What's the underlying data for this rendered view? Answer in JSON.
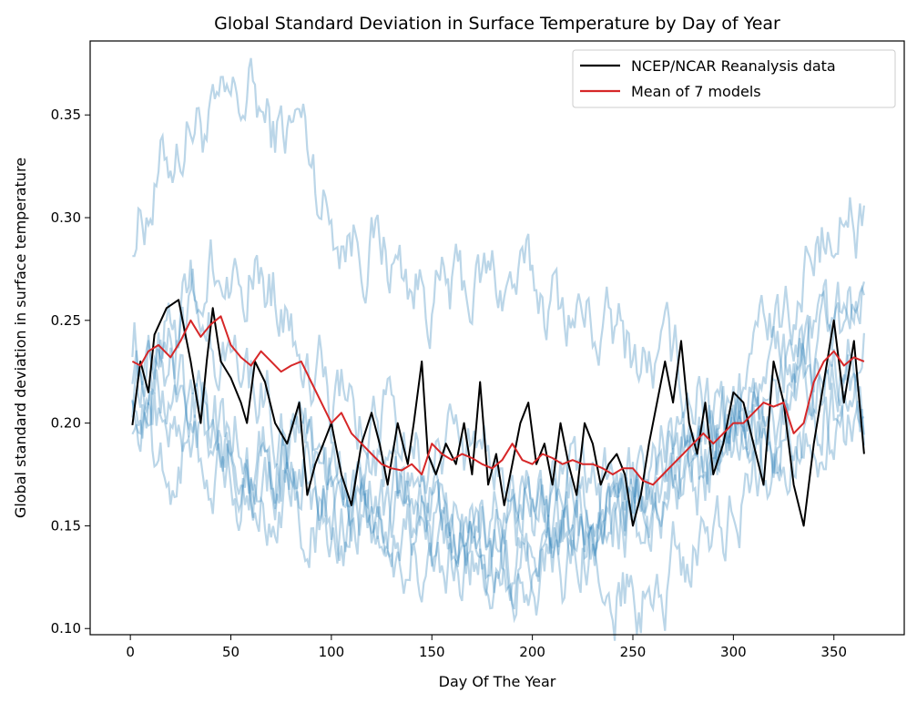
{
  "chart_data": {
    "type": "line",
    "title": "Global Standard Deviation in Surface Temperature by Day of Year",
    "xlabel": "Day Of The Year",
    "ylabel": "Global standard deviation in surface temperature",
    "xlim": [
      -20,
      385
    ],
    "ylim": [
      0.097,
      0.386
    ],
    "xticks": [
      0,
      50,
      100,
      150,
      200,
      250,
      300,
      350
    ],
    "yticks": [
      0.1,
      0.15,
      0.2,
      0.25,
      0.3,
      0.35
    ],
    "grid": false,
    "legend_position": "top-right",
    "model_color": "#1f77b4",
    "model_opacity": 0.3,
    "model_anchors": [
      {
        "x": [
          1,
          20,
          30,
          45,
          60,
          70,
          85,
          100,
          120,
          140,
          160,
          180,
          200,
          220,
          240,
          260,
          280,
          300,
          320,
          340,
          365
        ],
        "y": [
          0.296,
          0.33,
          0.35,
          0.34,
          0.36,
          0.34,
          0.345,
          0.3,
          0.29,
          0.27,
          0.26,
          0.27,
          0.265,
          0.255,
          0.24,
          0.23,
          0.22,
          0.2,
          0.21,
          0.22,
          0.24
        ]
      },
      {
        "x": [
          1,
          20,
          40,
          60,
          80,
          100,
          120,
          150,
          180,
          200,
          230,
          260,
          280,
          300,
          320,
          340,
          365
        ],
        "y": [
          0.245,
          0.24,
          0.27,
          0.28,
          0.26,
          0.21,
          0.2,
          0.19,
          0.18,
          0.17,
          0.16,
          0.15,
          0.18,
          0.2,
          0.24,
          0.29,
          0.3
        ]
      },
      {
        "x": [
          1,
          20,
          40,
          60,
          80,
          100,
          120,
          150,
          180,
          210,
          240,
          260,
          290,
          320,
          340,
          365
        ],
        "y": [
          0.23,
          0.26,
          0.24,
          0.22,
          0.2,
          0.18,
          0.16,
          0.15,
          0.14,
          0.13,
          0.12,
          0.12,
          0.15,
          0.19,
          0.23,
          0.26
        ]
      },
      {
        "x": [
          1,
          20,
          40,
          60,
          80,
          100,
          120,
          150,
          180,
          210,
          240,
          270,
          300,
          320,
          340,
          365
        ],
        "y": [
          0.22,
          0.23,
          0.21,
          0.19,
          0.18,
          0.16,
          0.17,
          0.16,
          0.15,
          0.16,
          0.15,
          0.17,
          0.2,
          0.22,
          0.24,
          0.25
        ]
      },
      {
        "x": [
          1,
          20,
          40,
          60,
          80,
          100,
          130,
          160,
          190,
          220,
          250,
          280,
          310,
          340,
          365
        ],
        "y": [
          0.21,
          0.2,
          0.19,
          0.18,
          0.17,
          0.15,
          0.15,
          0.14,
          0.15,
          0.16,
          0.17,
          0.19,
          0.2,
          0.21,
          0.22
        ]
      },
      {
        "x": [
          1,
          20,
          40,
          60,
          80,
          100,
          130,
          160,
          190,
          220,
          250,
          280,
          310,
          340,
          365
        ],
        "y": [
          0.2,
          0.18,
          0.2,
          0.19,
          0.18,
          0.17,
          0.16,
          0.15,
          0.14,
          0.15,
          0.16,
          0.17,
          0.18,
          0.2,
          0.2
        ]
      },
      {
        "x": [
          1,
          20,
          40,
          60,
          80,
          100,
          130,
          160,
          190,
          220,
          250,
          280,
          310,
          340,
          365
        ],
        "y": [
          0.215,
          0.21,
          0.2,
          0.17,
          0.17,
          0.16,
          0.15,
          0.14,
          0.13,
          0.15,
          0.17,
          0.18,
          0.2,
          0.21,
          0.19
        ]
      }
    ],
    "series": [
      {
        "name": "NCEP/NCAR Reanalysis data",
        "color": "#000000",
        "x": [
          1,
          5,
          9,
          12,
          18,
          24,
          30,
          35,
          38,
          41,
          45,
          50,
          55,
          58,
          62,
          67,
          72,
          78,
          84,
          88,
          92,
          96,
          100,
          105,
          110,
          115,
          120,
          124,
          128,
          133,
          138,
          141,
          145,
          148,
          152,
          157,
          162,
          166,
          170,
          174,
          178,
          182,
          186,
          190,
          194,
          198,
          202,
          206,
          210,
          214,
          218,
          222,
          226,
          230,
          234,
          238,
          242,
          246,
          250,
          254,
          258,
          262,
          266,
          270,
          274,
          278,
          282,
          286,
          290,
          295,
          300,
          305,
          310,
          315,
          320,
          325,
          330,
          335,
          340,
          345,
          350,
          355,
          360,
          365
        ],
        "y": [
          0.199,
          0.23,
          0.215,
          0.243,
          0.256,
          0.26,
          0.23,
          0.2,
          0.23,
          0.256,
          0.23,
          0.222,
          0.21,
          0.2,
          0.23,
          0.22,
          0.2,
          0.19,
          0.21,
          0.165,
          0.18,
          0.19,
          0.2,
          0.175,
          0.16,
          0.19,
          0.205,
          0.19,
          0.17,
          0.2,
          0.18,
          0.2,
          0.23,
          0.185,
          0.175,
          0.19,
          0.18,
          0.2,
          0.175,
          0.22,
          0.17,
          0.185,
          0.16,
          0.18,
          0.2,
          0.21,
          0.18,
          0.19,
          0.17,
          0.2,
          0.18,
          0.165,
          0.2,
          0.19,
          0.17,
          0.18,
          0.185,
          0.175,
          0.15,
          0.165,
          0.19,
          0.21,
          0.23,
          0.21,
          0.24,
          0.2,
          0.185,
          0.21,
          0.175,
          0.19,
          0.215,
          0.21,
          0.19,
          0.17,
          0.23,
          0.21,
          0.17,
          0.15,
          0.19,
          0.22,
          0.25,
          0.21,
          0.24,
          0.185
        ]
      },
      {
        "name": "Mean of 7 models",
        "color": "#d62728",
        "x": [
          1,
          5,
          9,
          14,
          20,
          25,
          30,
          35,
          40,
          45,
          50,
          55,
          60,
          65,
          70,
          75,
          80,
          85,
          90,
          95,
          100,
          105,
          110,
          115,
          120,
          125,
          130,
          135,
          140,
          145,
          150,
          155,
          160,
          165,
          170,
          175,
          180,
          185,
          190,
          195,
          200,
          205,
          210,
          215,
          220,
          225,
          230,
          235,
          240,
          245,
          250,
          255,
          260,
          265,
          270,
          275,
          280,
          285,
          290,
          295,
          300,
          305,
          310,
          315,
          320,
          325,
          330,
          335,
          340,
          345,
          350,
          355,
          360,
          365
        ],
        "y": [
          0.23,
          0.228,
          0.235,
          0.238,
          0.232,
          0.24,
          0.25,
          0.242,
          0.248,
          0.252,
          0.238,
          0.232,
          0.228,
          0.235,
          0.23,
          0.225,
          0.228,
          0.23,
          0.22,
          0.21,
          0.2,
          0.205,
          0.195,
          0.19,
          0.185,
          0.18,
          0.178,
          0.177,
          0.18,
          0.175,
          0.19,
          0.185,
          0.182,
          0.185,
          0.183,
          0.18,
          0.178,
          0.182,
          0.19,
          0.182,
          0.18,
          0.185,
          0.183,
          0.18,
          0.182,
          0.18,
          0.18,
          0.178,
          0.175,
          0.178,
          0.178,
          0.172,
          0.17,
          0.175,
          0.18,
          0.185,
          0.19,
          0.195,
          0.19,
          0.195,
          0.2,
          0.2,
          0.205,
          0.21,
          0.208,
          0.21,
          0.195,
          0.2,
          0.22,
          0.23,
          0.235,
          0.228,
          0.232,
          0.23
        ]
      }
    ]
  }
}
